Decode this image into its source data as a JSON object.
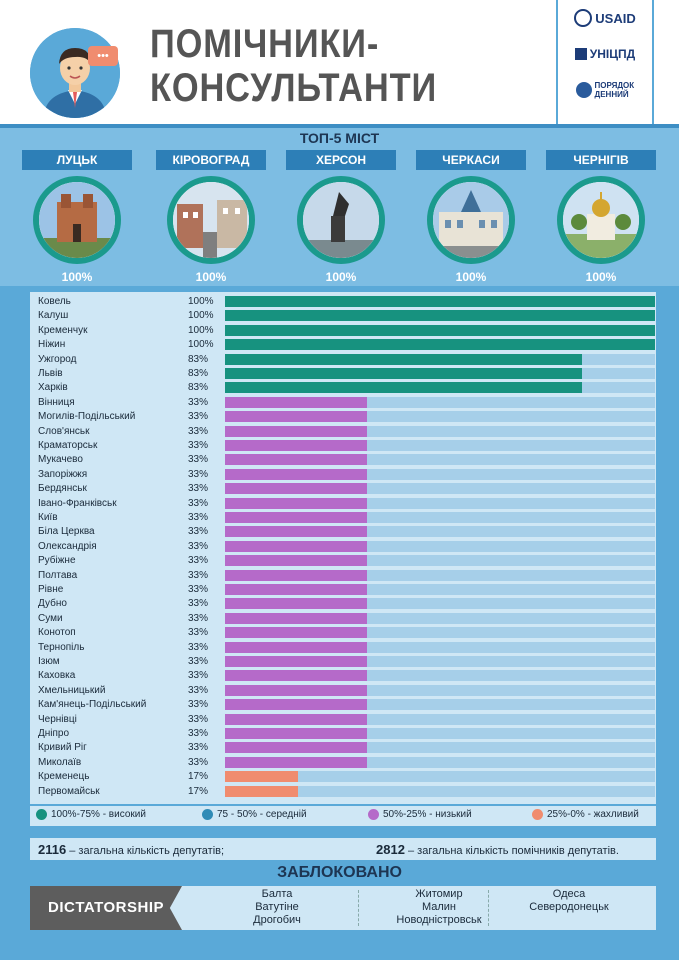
{
  "header": {
    "title_line1": "ПОМІЧНИКИ-",
    "title_line2": "КОНСУЛЬТАНТИ",
    "speech_bubble_dots": "•••",
    "logos": [
      "USAID",
      "УНІЦПД",
      "ПОРЯДОК ДЕННИЙ"
    ]
  },
  "top5": {
    "title": "ТОП-5 МІСТ",
    "cities": [
      {
        "name": "ЛУЦЬК",
        "pct": "100%"
      },
      {
        "name": "КІРОВОГРАД",
        "pct": "100%"
      },
      {
        "name": "ХЕРСОН",
        "pct": "100%"
      },
      {
        "name": "ЧЕРКАСИ",
        "pct": "100%"
      },
      {
        "name": "ЧЕРНІГІВ",
        "pct": "100%"
      }
    ]
  },
  "colors": {
    "high": "#17927f",
    "medium": "#2f8bb6",
    "low": "#b56ac9",
    "poor": "#f08c6f"
  },
  "chart_data": {
    "type": "bar",
    "orientation": "horizontal",
    "categories": [
      "Ковель",
      "Калуш",
      "Кременчук",
      "Ніжин",
      "Ужгород",
      "Львів",
      "Харків",
      "Вінниця",
      "Могилів-Подільський",
      "Слов'янськ",
      "Краматорськ",
      "Мукачево",
      "Запоріжжя",
      "Бердянськ",
      "Івано-Франківськ",
      "Київ",
      "Біла Церква",
      "Олександрія",
      "Рубіжне",
      "Полтава",
      "Рівне",
      "Дубно",
      "Суми",
      "Конотоп",
      "Тернопіль",
      "Ізюм",
      "Каховка",
      "Хмельницький",
      "Кам'янець-Подільський",
      "Чернівці",
      "Дніпро",
      "Кривий Ріг",
      "Миколаїв",
      "Кременець",
      "Первомайськ"
    ],
    "values": [
      100,
      100,
      100,
      100,
      83,
      83,
      83,
      33,
      33,
      33,
      33,
      33,
      33,
      33,
      33,
      33,
      33,
      33,
      33,
      33,
      33,
      33,
      33,
      33,
      33,
      33,
      33,
      33,
      33,
      33,
      33,
      33,
      33,
      17,
      17
    ],
    "value_labels": [
      "100%",
      "100%",
      "100%",
      "100%",
      "83%",
      "83%",
      "83%",
      "33%",
      "33%",
      "33%",
      "33%",
      "33%",
      "33%",
      "33%",
      "33%",
      "33%",
      "33%",
      "33%",
      "33%",
      "33%",
      "33%",
      "33%",
      "33%",
      "33%",
      "33%",
      "33%",
      "33%",
      "33%",
      "33%",
      "33%",
      "33%",
      "33%",
      "33%",
      "17%",
      "17%"
    ],
    "xlim": [
      0,
      100
    ]
  },
  "legend": [
    {
      "label": "100%-75% - високий",
      "color_key": "high"
    },
    {
      "label": "75 - 50% - середній",
      "color_key": "medium"
    },
    {
      "label": "50%-25% - низький",
      "color_key": "low"
    },
    {
      "label": "25%-0% - жахливий",
      "color_key": "poor"
    }
  ],
  "stats": {
    "deputies_number": "2116",
    "deputies_text": " – загальна кількість депутатів;",
    "assistants_number": "2812",
    "assistants_text": " – загальна кількість помічників депутатів."
  },
  "blocked": {
    "title": "ЗАБЛОКОВАНО",
    "label": "DICTATORSHIP",
    "columns": [
      [
        "Балта",
        "Ватутіне",
        "Дрогобич"
      ],
      [
        "Житомир",
        "Малин",
        "Новодністровськ"
      ],
      [
        "Одеса",
        "Северодонецьк"
      ]
    ]
  }
}
